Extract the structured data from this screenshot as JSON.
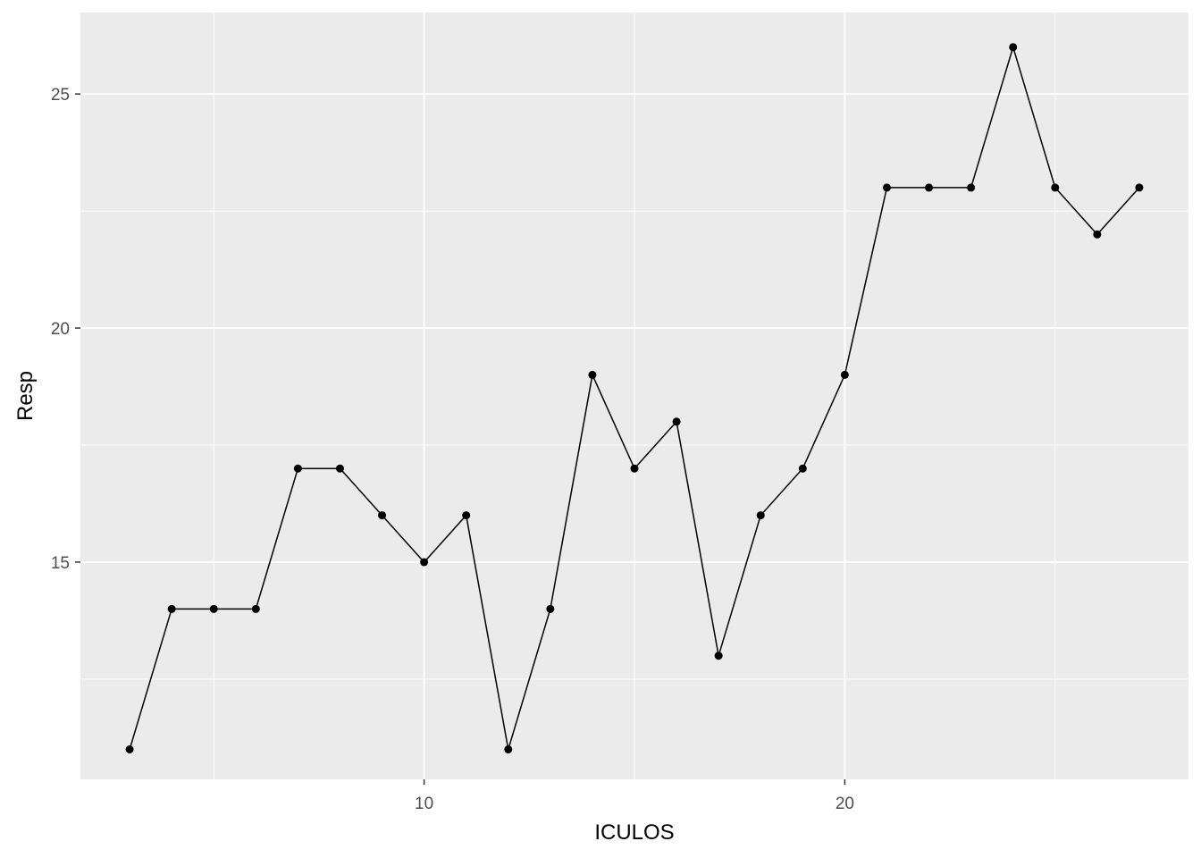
{
  "chart_data": {
    "type": "line",
    "title": "",
    "xlabel": "ICULOS",
    "ylabel": "Resp",
    "x_ticks": [
      10,
      20
    ],
    "y_ticks": [
      15,
      20,
      25
    ],
    "x_tick_labels": [
      "10",
      "20"
    ],
    "y_tick_labels": [
      "15",
      "20",
      "25"
    ],
    "xlim": [
      1.83,
      28.17
    ],
    "ylim": [
      10.36,
      26.74
    ],
    "grid": true,
    "markers": true,
    "series": [
      {
        "x": [
          3,
          4,
          5,
          6,
          7,
          8,
          9,
          10,
          11,
          12,
          13,
          14,
          15,
          16,
          17,
          18,
          19,
          20,
          21,
          22,
          23,
          24,
          25,
          26,
          27
        ],
        "y": [
          11,
          14,
          14,
          14,
          17,
          17,
          16,
          15,
          16,
          11,
          14,
          19,
          17,
          18,
          13,
          16,
          17,
          19,
          23,
          23,
          23,
          26,
          23,
          22,
          23
        ]
      }
    ]
  },
  "colors": {
    "panel_background": "#ebebeb",
    "grid_major": "#ffffff",
    "line": "#000000",
    "point": "#000000",
    "tick_text": "#4d4d4d",
    "tick_mark": "#333333"
  }
}
